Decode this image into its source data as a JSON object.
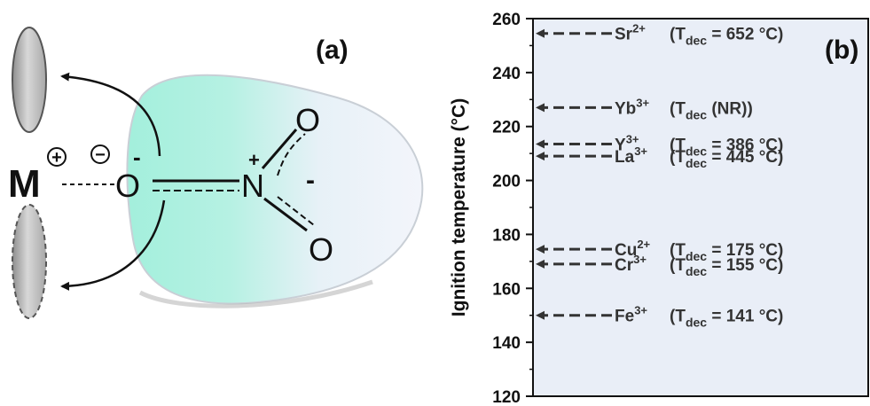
{
  "panel_a": {
    "label": "(a)",
    "metal_symbol": "M",
    "metal_charge_symbol": "+",
    "anion_charge_symbol": "−",
    "oxygen_minus_symbol": "O",
    "oxygen_minus_charge": "-",
    "nitrogen_symbol": "N",
    "nitrogen_charge": "+",
    "oxygen_top_symbol": "O",
    "oxygen_bottom_symbol": "O",
    "delocalized_charge": "-",
    "colors": {
      "lobe_teal": "#a7f0df",
      "lobe_white": "#f2f4fb",
      "ellipse_gray": "#b8b8b8"
    }
  },
  "panel_b": {
    "label": "(b)",
    "y_axis_title": "Ignition temperature (°C)",
    "y_ticks": [
      "120",
      "140",
      "160",
      "180",
      "200",
      "220",
      "240",
      "260"
    ],
    "ylim": [
      120,
      260
    ],
    "plot_background": "#e9eef7",
    "entries": [
      {
        "ion": "Sr",
        "charge": "2+",
        "ignition": 254.5,
        "tdec_text": "= 652 °C)"
      },
      {
        "ion": "Yb",
        "charge": "3+",
        "ignition": 227,
        "tdec_text": "(NR))"
      },
      {
        "ion": "Y",
        "charge": "3+",
        "ignition": 213.5,
        "tdec_text": "= 386 °C)"
      },
      {
        "ion": "La",
        "charge": "3+",
        "ignition": 209,
        "tdec_text": "= 445 °C)"
      },
      {
        "ion": "Cu",
        "charge": "2+",
        "ignition": 174.5,
        "tdec_text": "= 175 °C)"
      },
      {
        "ion": "Cr",
        "charge": "3+",
        "ignition": 169,
        "tdec_text": "= 155 °C)"
      },
      {
        "ion": "Fe",
        "charge": "3+",
        "ignition": 150,
        "tdec_text": "= 141 °C)"
      }
    ],
    "tdec_prefix": "(T",
    "tdec_subscript": "dec"
  }
}
